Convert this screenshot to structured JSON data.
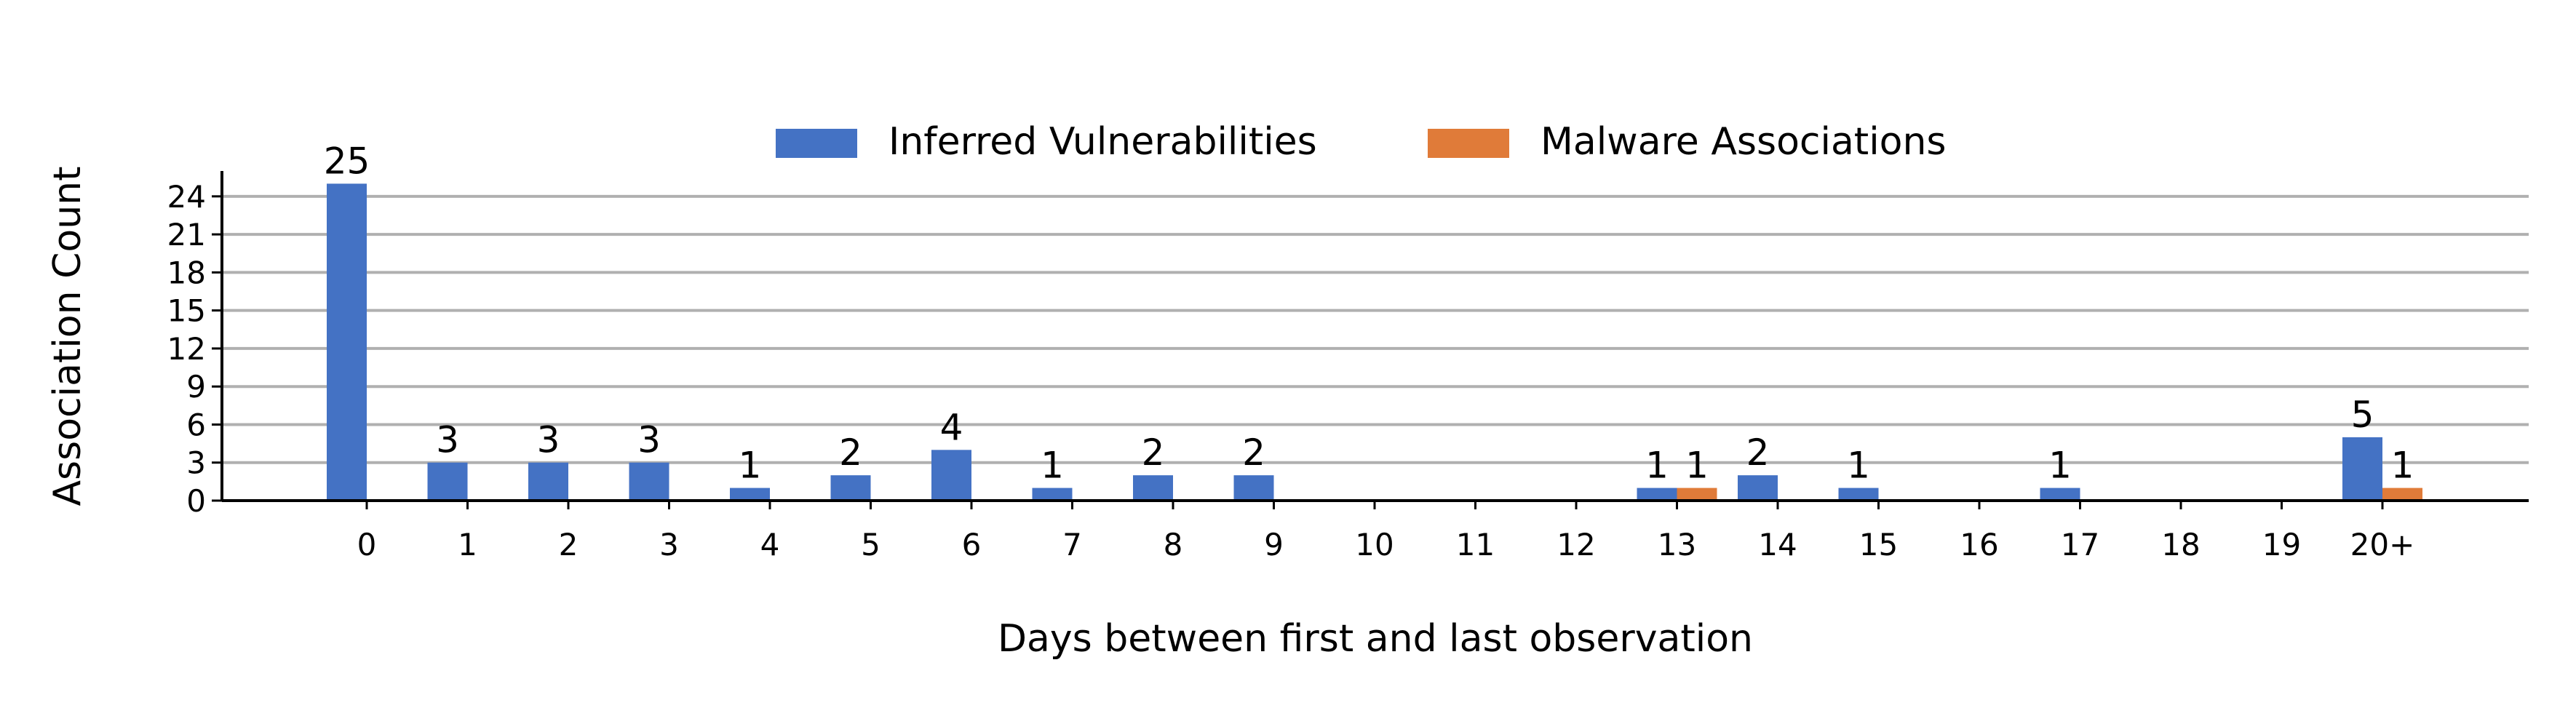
{
  "chart_data": {
    "type": "bar",
    "title": "",
    "xlabel": "Days between first and last observation",
    "ylabel": "Association Count",
    "categories": [
      "0",
      "1",
      "2",
      "3",
      "4",
      "5",
      "6",
      "7",
      "8",
      "9",
      "10",
      "11",
      "12",
      "13",
      "14",
      "15",
      "16",
      "17",
      "18",
      "19",
      "20+"
    ],
    "series": [
      {
        "name": "Inferred Vulnerabilities",
        "color": "#4472C4",
        "values": [
          25,
          3,
          3,
          3,
          1,
          2,
          4,
          1,
          2,
          2,
          0,
          0,
          0,
          1,
          2,
          1,
          0,
          1,
          0,
          0,
          5
        ]
      },
      {
        "name": "Malware Associations",
        "color": "#E07B39",
        "values": [
          0,
          0,
          0,
          0,
          0,
          0,
          0,
          0,
          0,
          0,
          0,
          0,
          0,
          1,
          0,
          0,
          0,
          0,
          0,
          0,
          1
        ]
      }
    ],
    "ylim": [
      0,
      26
    ],
    "yticks": [
      0,
      3,
      6,
      9,
      12,
      15,
      18,
      21,
      24
    ],
    "grid": "horizontal",
    "legend_position": "top-center",
    "bar_labels": "shown for non-zero values"
  }
}
